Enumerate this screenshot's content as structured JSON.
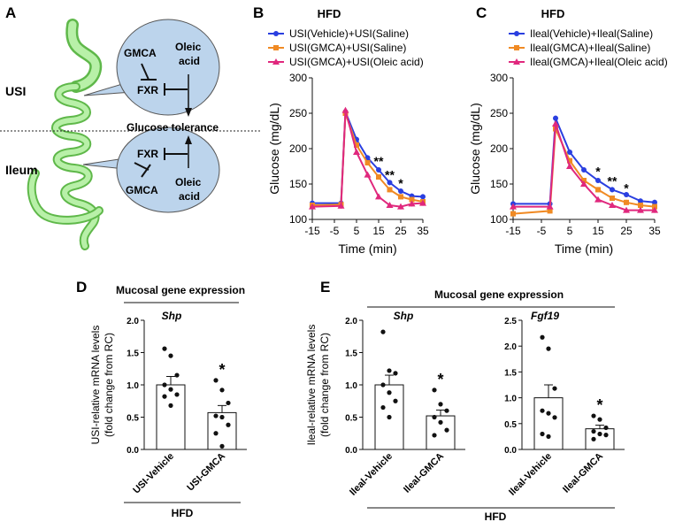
{
  "panels": {
    "A": {
      "letter": "A",
      "usi": "USI",
      "ileum": "Ileum",
      "top_bubble": {
        "gmca": "GMCA",
        "fxr": "FXR",
        "oleic1": "Oleic",
        "oleic2": "acid"
      },
      "bottom_bubble": {
        "gmca": "GMCA",
        "fxr": "FXR",
        "oleic1": "Oleic",
        "oleic2": "acid"
      },
      "glucose_tolerance": "Glucose tolerance"
    },
    "B": {
      "letter": "B"
    },
    "C": {
      "letter": "C"
    },
    "D": {
      "letter": "D",
      "header": "Mucosal gene expression",
      "hfd": "HFD"
    },
    "E": {
      "letter": "E",
      "header": "Mucosal gene expression",
      "hfd": "HFD"
    }
  },
  "chart_data": [
    {
      "id": "B",
      "type": "line",
      "title": "HFD",
      "xlabel": "Time (min)",
      "ylabel": "Glucose (mg/dL)",
      "xlim": [
        -15,
        35
      ],
      "ylim": [
        100,
        300
      ],
      "xticks": [
        -15,
        -5,
        5,
        15,
        25,
        35
      ],
      "yticks": [
        100,
        150,
        200,
        250,
        300
      ],
      "x": [
        -15,
        -2,
        0,
        5,
        10,
        15,
        20,
        25,
        30,
        35
      ],
      "series": [
        {
          "name": "USI(Vehicle)+USI(Saline)",
          "color": "#2a3fe0",
          "marker": "circle",
          "values": [
            123,
            123,
            252,
            213,
            187,
            170,
            152,
            140,
            133,
            132
          ]
        },
        {
          "name": "USI(GMCA)+USI(Saline)",
          "color": "#f08a24",
          "marker": "square",
          "values": [
            120,
            121,
            250,
            205,
            180,
            160,
            142,
            132,
            128,
            125
          ]
        },
        {
          "name": "USI(GMCA)+USI(Oleic acid)",
          "color": "#e0287d",
          "marker": "triangle",
          "values": [
            118,
            119,
            254,
            195,
            163,
            132,
            120,
            118,
            122,
            123
          ]
        }
      ],
      "significance": [
        {
          "x": 15,
          "y": 176,
          "label": "**"
        },
        {
          "x": 20,
          "y": 157,
          "label": "**"
        },
        {
          "x": 25,
          "y": 145,
          "label": "*"
        }
      ],
      "legend": "top"
    },
    {
      "id": "C",
      "type": "line",
      "title": "HFD",
      "xlabel": "Time (min)",
      "ylabel": "Glucose (mg/dL)",
      "xlim": [
        -15,
        35
      ],
      "ylim": [
        100,
        300
      ],
      "xticks": [
        -15,
        -5,
        5,
        15,
        25,
        35
      ],
      "yticks": [
        100,
        150,
        200,
        250,
        300
      ],
      "x": [
        -15,
        -2,
        0,
        5,
        10,
        15,
        20,
        25,
        30,
        35
      ],
      "series": [
        {
          "name": "Ileal(Vehicle)+Ileal(Saline)",
          "color": "#2a3fe0",
          "marker": "circle",
          "values": [
            122,
            122,
            243,
            195,
            170,
            155,
            142,
            135,
            126,
            124
          ]
        },
        {
          "name": "Ileal(GMCA)+Ileal(Saline)",
          "color": "#f08a24",
          "marker": "square",
          "values": [
            108,
            112,
            228,
            183,
            155,
            142,
            130,
            124,
            120,
            118
          ]
        },
        {
          "name": "Ileal(GMCA)+Ileal(Oleic acid)",
          "color": "#e0287d",
          "marker": "triangle",
          "values": [
            118,
            118,
            235,
            175,
            150,
            128,
            120,
            113,
            113,
            113
          ]
        }
      ],
      "significance": [
        {
          "x": 15,
          "y": 162,
          "label": "*"
        },
        {
          "x": 20,
          "y": 148,
          "label": "**"
        },
        {
          "x": 25,
          "y": 138,
          "label": "*"
        }
      ],
      "legend": "top"
    },
    {
      "id": "D",
      "type": "bar",
      "title": "Shp",
      "ylabel": "USI-relative mRNA levels (fold change from RC)",
      "ylim": [
        0,
        2.0
      ],
      "yticks": [
        0.0,
        0.5,
        1.0,
        1.5,
        2.0
      ],
      "categories": [
        "USI-Vehicle",
        "USI-GMCA"
      ],
      "values": [
        1.0,
        0.57
      ],
      "errors": [
        0.13,
        0.11
      ],
      "points": [
        [
          1.56,
          1.45,
          1.15,
          1.0,
          0.93,
          0.85,
          0.82,
          0.68
        ],
        [
          1.07,
          0.92,
          0.72,
          0.52,
          0.5,
          0.38,
          0.25,
          0.05
        ]
      ],
      "significance": [
        {
          "category": "USI-GMCA",
          "label": "*"
        }
      ]
    },
    {
      "id": "E1",
      "type": "bar",
      "title": "Shp",
      "ylabel": "Ileal-relative mRNA levels (fold change from RC)",
      "ylim": [
        0,
        2.0
      ],
      "yticks": [
        0.0,
        0.5,
        1.0,
        1.5,
        2.0
      ],
      "categories": [
        "Ileal-Vehicle",
        "Ileal-GMCA"
      ],
      "values": [
        1.0,
        0.52
      ],
      "errors": [
        0.15,
        0.09
      ],
      "points": [
        [
          1.82,
          1.22,
          1.18,
          1.0,
          0.88,
          0.75,
          0.65,
          0.5
        ],
        [
          0.92,
          0.7,
          0.6,
          0.5,
          0.42,
          0.3,
          0.22
        ]
      ],
      "significance": [
        {
          "category": "Ileal-GMCA",
          "label": "*"
        }
      ]
    },
    {
      "id": "E2",
      "type": "bar",
      "title": "Fgf19",
      "ylim": [
        0,
        2.5
      ],
      "yticks": [
        0.0,
        0.5,
        1.0,
        1.5,
        2.0,
        2.5
      ],
      "categories": [
        "Ileal-Vehicle",
        "Ileal-GMCA"
      ],
      "values": [
        1.0,
        0.4
      ],
      "errors": [
        0.25,
        0.07
      ],
      "points": [
        [
          2.17,
          1.95,
          1.18,
          0.75,
          0.7,
          0.62,
          0.3,
          0.25
        ],
        [
          0.65,
          0.58,
          0.42,
          0.35,
          0.3,
          0.28,
          0.2
        ]
      ],
      "significance": [
        {
          "category": "Ileal-GMCA",
          "label": "*"
        }
      ]
    }
  ]
}
